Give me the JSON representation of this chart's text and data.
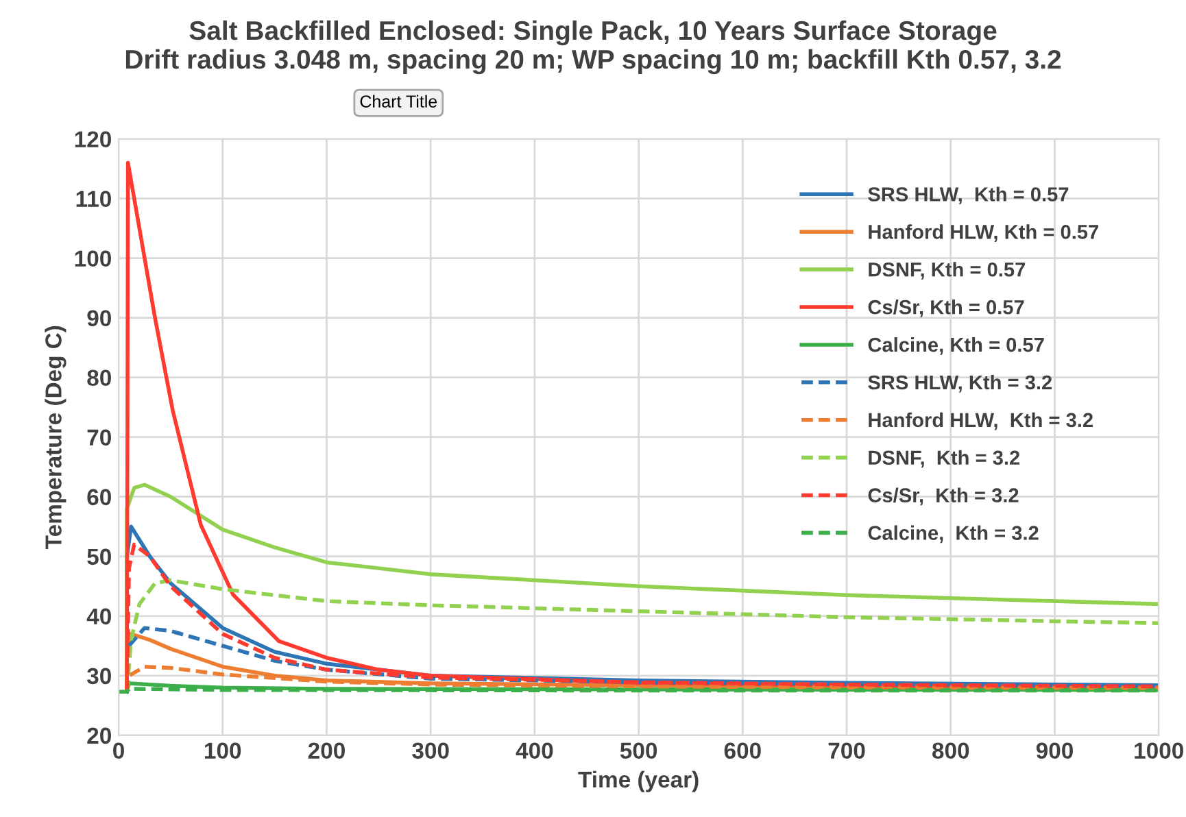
{
  "chart_data": {
    "type": "line",
    "title": "Salt Backfilled Enclosed: Single Pack, 10 Years Surface Storage\nDrift radius 3.048 m, spacing 20 m; WP spacing 10 m; backfill Kth 0.57, 3.2",
    "xlabel": "Time (year)",
    "ylabel": "Temperature (Deg C)",
    "annotations": [
      "Chart Title"
    ],
    "xlim": [
      0,
      1000
    ],
    "xticks": [
      0,
      100,
      200,
      300,
      400,
      500,
      600,
      700,
      800,
      900,
      1000
    ],
    "ylim": [
      20,
      120
    ],
    "yticks": [
      20,
      30,
      40,
      50,
      60,
      70,
      80,
      90,
      100,
      110,
      120
    ],
    "grid": true,
    "legend": "top right",
    "marker": "none",
    "series": [
      {
        "name": "SRS HLW,  Kth = 0.57",
        "color": "#2e75b6",
        "line_style": "solid",
        "x": [
          8,
          8,
          12,
          30,
          50,
          100,
          150,
          200,
          300,
          500,
          700,
          1000
        ],
        "values": [
          27.3,
          50,
          55,
          50,
          45.5,
          38,
          34,
          32,
          30,
          29.2,
          28.8,
          28.4
        ]
      },
      {
        "name": "Hanford HLW, Kth = 0.57",
        "color": "#ed7d31",
        "line_style": "solid",
        "x": [
          8,
          8,
          12,
          30,
          50,
          100,
          150,
          200,
          300,
          500,
          700,
          1000
        ],
        "values": [
          27.3,
          34,
          37,
          36,
          34.5,
          31.5,
          30,
          29.2,
          28.7,
          28.4,
          28.2,
          28
        ]
      },
      {
        "name": "DSNF, Kth = 0.57",
        "color": "#92d050",
        "line_style": "solid",
        "x": [
          8,
          8,
          15,
          25,
          50,
          100,
          150,
          200,
          300,
          500,
          700,
          1000
        ],
        "values": [
          27.3,
          58,
          61.5,
          62,
          60,
          54.5,
          51.5,
          49,
          47,
          45,
          43.5,
          42
        ]
      },
      {
        "name": "Cs/Sr, Kth = 0.57",
        "color": "#ff3b2f",
        "line_style": "solid",
        "x": [
          8,
          9,
          16,
          25,
          35,
          52,
          79,
          110,
          154,
          200,
          250,
          300,
          500,
          700,
          1000
        ],
        "values": [
          27.3,
          116,
          109,
          100,
          90,
          74.5,
          55.3,
          43.6,
          35.8,
          33,
          31,
          30,
          28.8,
          28.4,
          28
        ]
      },
      {
        "name": "Calcine, Kth = 0.57",
        "color": "#3cae4a",
        "line_style": "solid",
        "x": [
          8,
          10,
          50,
          100,
          200,
          500,
          1000
        ],
        "values": [
          27.3,
          28.7,
          28.3,
          28,
          27.8,
          27.7,
          27.6
        ]
      },
      {
        "name": "SRS HLW, Kth = 3.2",
        "color": "#2e75b6",
        "line_style": "dashed",
        "x": [
          10,
          25,
          50,
          100,
          150,
          200,
          300,
          500,
          700,
          1000
        ],
        "values": [
          35,
          38,
          37.5,
          35,
          32.5,
          31,
          29.5,
          28.9,
          28.6,
          28.3
        ]
      },
      {
        "name": "Hanford HLW,  Kth = 3.2",
        "color": "#ed7d31",
        "line_style": "dashed",
        "x": [
          8,
          10,
          25,
          50,
          100,
          200,
          300,
          500,
          700,
          1000
        ],
        "values": [
          27.3,
          30,
          31.5,
          31.3,
          30.2,
          29,
          28.5,
          28.2,
          28,
          27.9
        ]
      },
      {
        "name": "DSNF,  Kth = 3.2",
        "color": "#92d050",
        "line_style": "dashed",
        "x": [
          8,
          12,
          20,
          35,
          50,
          100,
          200,
          300,
          500,
          700,
          1000
        ],
        "values": [
          27.3,
          36,
          42,
          45.5,
          46,
          44.5,
          42.5,
          41.8,
          40.8,
          39.8,
          38.8
        ]
      },
      {
        "name": "Cs/Sr,  Kth = 3.2",
        "color": "#ff3b2f",
        "line_style": "dashed",
        "x": [
          8,
          10,
          15,
          30,
          50,
          100,
          150,
          200,
          300,
          500,
          700,
          1000
        ],
        "values": [
          27.3,
          48,
          52,
          50,
          45,
          37,
          33,
          31,
          29.7,
          28.9,
          28.5,
          28.2
        ]
      },
      {
        "name": "Calcine,  Kth = 3.2",
        "color": "#3cae4a",
        "line_style": "dashed",
        "x": [
          0,
          8,
          10,
          100,
          500,
          1000
        ],
        "values": [
          27.3,
          27.3,
          27.8,
          27.6,
          27.5,
          27.5
        ]
      }
    ]
  }
}
